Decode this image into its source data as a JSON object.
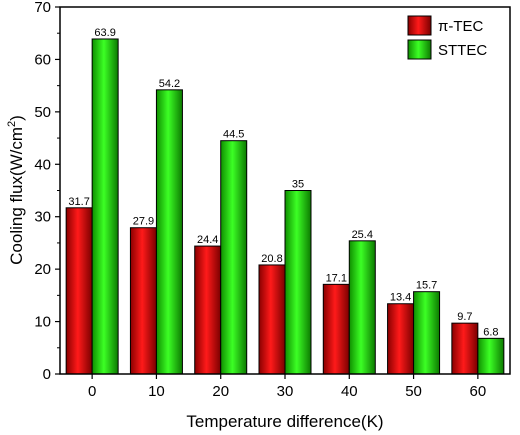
{
  "chart_data": {
    "type": "bar",
    "categories": [
      "0",
      "10",
      "20",
      "30",
      "40",
      "50",
      "60"
    ],
    "series": [
      {
        "name": "π-TEC",
        "values": [
          31.7,
          27.9,
          24.4,
          20.8,
          17.1,
          13.4,
          9.7
        ],
        "labels": [
          "31.7",
          "27.9",
          "24.4",
          "20.8",
          "17.1",
          "13.4",
          "9.7"
        ],
        "color": "#d40000"
      },
      {
        "name": "STTEC",
        "values": [
          63.9,
          54.2,
          44.5,
          35,
          25.4,
          15.7,
          6.8
        ],
        "labels": [
          "63.9",
          "54.2",
          "44.5",
          "35",
          "25.4",
          "15.7",
          "6.8"
        ],
        "color": "#1ed400"
      }
    ],
    "xlabel": "Temperature difference(K)",
    "ylabel_main": "Cooling flux(W/cm",
    "ylabel_sup": "2",
    "ylabel_close": ")",
    "ylim": [
      0,
      70
    ],
    "yticks": [
      "0",
      "10",
      "20",
      "30",
      "40",
      "50",
      "60",
      "70"
    ],
    "legend_position": "top-right",
    "grid": false
  }
}
